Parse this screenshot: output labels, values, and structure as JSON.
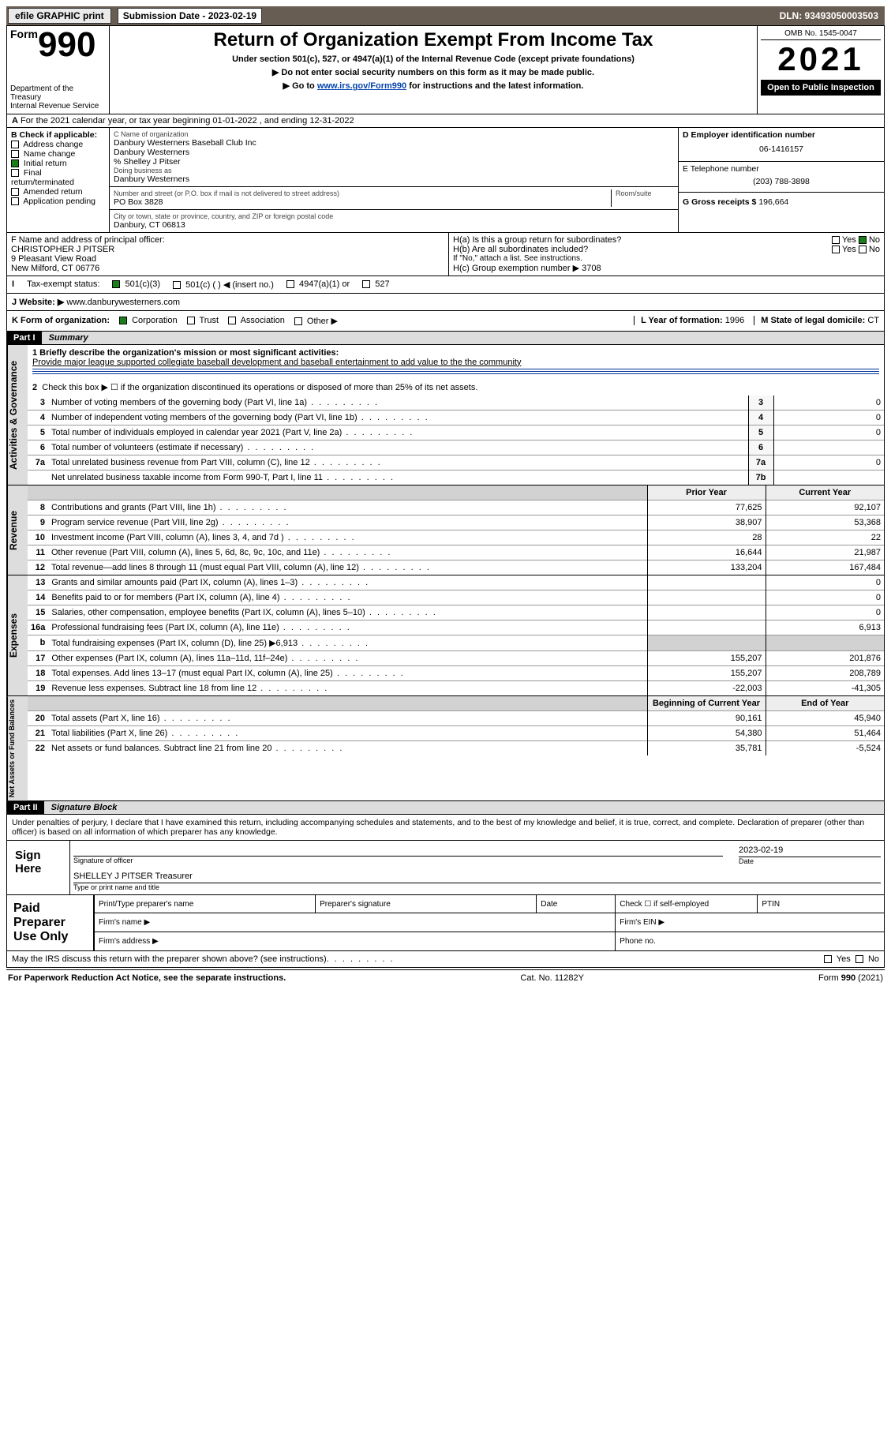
{
  "topbar": {
    "efile_label": "efile GRAPHIC print",
    "submission_label": "Submission Date - 2023-02-19",
    "dln": "DLN: 93493050003503"
  },
  "header": {
    "form_prefix": "Form",
    "form_num": "990",
    "title": "Return of Organization Exempt From Income Tax",
    "sub1": "Under section 501(c), 527, or 4947(a)(1) of the Internal Revenue Code (except private foundations)",
    "sub2": "▶ Do not enter social security numbers on this form as it may be made public.",
    "sub3_pre": "▶ Go to ",
    "sub3_link": "www.irs.gov/Form990",
    "sub3_post": " for instructions and the latest information.",
    "dept": "Department of the Treasury",
    "irs": "Internal Revenue Service",
    "omb": "OMB No. 1545-0047",
    "year": "2021",
    "open": "Open to Public Inspection"
  },
  "line_a": "For the 2021 calendar year, or tax year beginning 01-01-2022   , and ending 12-31-2022",
  "box_b": {
    "label": "B Check if applicable:",
    "items": [
      "Address change",
      "Name change",
      "Initial return",
      "Final return/terminated",
      "Amended return",
      "Application pending"
    ],
    "checked_idx": 2
  },
  "box_c": {
    "label": "C Name of organization",
    "l1": "Danbury Westerners Baseball Club Inc",
    "l2": "Danbury Westerners",
    "l3": "% Shelley J Pitser",
    "dba_label": "Doing business as",
    "dba": "Danbury Westerners",
    "street_label": "Number and street (or P.O. box if mail is not delivered to street address)",
    "suite_label": "Room/suite",
    "street": "PO Box 3828",
    "city_label": "City or town, state or province, country, and ZIP or foreign postal code",
    "city": "Danbury, CT  06813"
  },
  "box_d": {
    "label": "D Employer identification number",
    "val": "06-1416157"
  },
  "box_e": {
    "label": "E Telephone number",
    "val": "(203) 788-3898"
  },
  "box_g": {
    "label": "G Gross receipts $",
    "val": "196,664"
  },
  "box_f": {
    "label": "F  Name and address of principal officer:",
    "l1": "CHRISTOPHER J PITSER",
    "l2": "9 Pleasant View Road",
    "l3": "New Milford, CT  06776"
  },
  "box_h": {
    "ha": "H(a)  Is this a group return for subordinates?",
    "hb": "H(b)  Are all subordinates included?",
    "hb_note": "If \"No,\" attach a list. See instructions.",
    "hc": "H(c)  Group exemption number ▶",
    "hc_val": "3708",
    "yes": "Yes",
    "no": "No"
  },
  "box_i": {
    "label": "Tax-exempt status:",
    "o1": "501(c)(3)",
    "o2": "501(c) (  ) ◀ (insert no.)",
    "o3": "4947(a)(1) or",
    "o4": "527"
  },
  "box_j": {
    "label": "Website: ▶",
    "val": "www.danburywesterners.com"
  },
  "box_k": {
    "label": "K Form of organization:",
    "o1": "Corporation",
    "o2": "Trust",
    "o3": "Association",
    "o4": "Other ▶"
  },
  "box_l": {
    "label": "L Year of formation:",
    "val": "1996"
  },
  "box_m": {
    "label": "M State of legal domicile:",
    "val": "CT"
  },
  "part1": {
    "hdr": "Part I",
    "title": "Summary"
  },
  "summary": {
    "q1_label": "1  Briefly describe the organization's mission or most significant activities:",
    "q1_text": "Provide major league supported collegiate baseball development and baseball entertainment to add value to the the community",
    "q2": "Check this box ▶ ☐  if the organization discontinued its operations or disposed of more than 25% of its net assets.",
    "rows_ag": [
      {
        "n": "3",
        "t": "Number of voting members of the governing body (Part VI, line 1a)",
        "b": "3",
        "v": "0"
      },
      {
        "n": "4",
        "t": "Number of independent voting members of the governing body (Part VI, line 1b)",
        "b": "4",
        "v": "0"
      },
      {
        "n": "5",
        "t": "Total number of individuals employed in calendar year 2021 (Part V, line 2a)",
        "b": "5",
        "v": "0"
      },
      {
        "n": "6",
        "t": "Total number of volunteers (estimate if necessary)",
        "b": "6",
        "v": ""
      },
      {
        "n": "7a",
        "t": "Total unrelated business revenue from Part VIII, column (C), line 12",
        "b": "7a",
        "v": "0"
      },
      {
        "n": "",
        "t": "Net unrelated business taxable income from Form 990-T, Part I, line 11",
        "b": "7b",
        "v": ""
      }
    ],
    "col_prior": "Prior Year",
    "col_curr": "Current Year",
    "rows_rev": [
      {
        "n": "8",
        "t": "Contributions and grants (Part VIII, line 1h)",
        "p": "77,625",
        "c": "92,107"
      },
      {
        "n": "9",
        "t": "Program service revenue (Part VIII, line 2g)",
        "p": "38,907",
        "c": "53,368"
      },
      {
        "n": "10",
        "t": "Investment income (Part VIII, column (A), lines 3, 4, and 7d )",
        "p": "28",
        "c": "22"
      },
      {
        "n": "11",
        "t": "Other revenue (Part VIII, column (A), lines 5, 6d, 8c, 9c, 10c, and 11e)",
        "p": "16,644",
        "c": "21,987"
      },
      {
        "n": "12",
        "t": "Total revenue—add lines 8 through 11 (must equal Part VIII, column (A), line 12)",
        "p": "133,204",
        "c": "167,484"
      }
    ],
    "rows_exp": [
      {
        "n": "13",
        "t": "Grants and similar amounts paid (Part IX, column (A), lines 1–3)",
        "p": "",
        "c": "0"
      },
      {
        "n": "14",
        "t": "Benefits paid to or for members (Part IX, column (A), line 4)",
        "p": "",
        "c": "0"
      },
      {
        "n": "15",
        "t": "Salaries, other compensation, employee benefits (Part IX, column (A), lines 5–10)",
        "p": "",
        "c": "0"
      },
      {
        "n": "16a",
        "t": "Professional fundraising fees (Part IX, column (A), line 11e)",
        "p": "",
        "c": "6,913"
      },
      {
        "n": "b",
        "t": "Total fundraising expenses (Part IX, column (D), line 25) ▶6,913",
        "p": "gr",
        "c": "gr"
      },
      {
        "n": "17",
        "t": "Other expenses (Part IX, column (A), lines 11a–11d, 11f–24e)",
        "p": "155,207",
        "c": "201,876"
      },
      {
        "n": "18",
        "t": "Total expenses. Add lines 13–17 (must equal Part IX, column (A), line 25)",
        "p": "155,207",
        "c": "208,789"
      },
      {
        "n": "19",
        "t": "Revenue less expenses. Subtract line 18 from line 12",
        "p": "-22,003",
        "c": "-41,305"
      }
    ],
    "col_begin": "Beginning of Current Year",
    "col_end": "End of Year",
    "rows_na": [
      {
        "n": "20",
        "t": "Total assets (Part X, line 16)",
        "p": "90,161",
        "c": "45,940"
      },
      {
        "n": "21",
        "t": "Total liabilities (Part X, line 26)",
        "p": "54,380",
        "c": "51,464"
      },
      {
        "n": "22",
        "t": "Net assets or fund balances. Subtract line 21 from line 20",
        "p": "35,781",
        "c": "-5,524"
      }
    ],
    "side_ag": "Activities & Governance",
    "side_rev": "Revenue",
    "side_exp": "Expenses",
    "side_na": "Net Assets or Fund Balances"
  },
  "part2": {
    "hdr": "Part II",
    "title": "Signature Block"
  },
  "sig": {
    "penalties": "Under penalties of perjury, I declare that I have examined this return, including accompanying schedules and statements, and to the best of my knowledge and belief, it is true, correct, and complete. Declaration of preparer (other than officer) is based on all information of which preparer has any knowledge.",
    "sign_here": "Sign Here",
    "sig_of_officer": "Signature of officer",
    "date_label": "Date",
    "date_val": "2023-02-19",
    "name": "SHELLEY J PITSER  Treasurer",
    "name_label": "Type or print name and title",
    "paid_label": "Paid Preparer Use Only",
    "prep_name": "Print/Type preparer's name",
    "prep_sig": "Preparer's signature",
    "chk_self": "Check ☐ if self-employed",
    "ptin": "PTIN",
    "firm_name": "Firm's name  ▶",
    "firm_ein": "Firm's EIN ▶",
    "firm_addr": "Firm's address ▶",
    "phone": "Phone no.",
    "may_irs": "May the IRS discuss this return with the preparer shown above? (see instructions)",
    "yes": "Yes",
    "no": "No"
  },
  "footer": {
    "pra": "For Paperwork Reduction Act Notice, see the separate instructions.",
    "cat": "Cat. No. 11282Y",
    "form": "Form 990 (2021)"
  }
}
